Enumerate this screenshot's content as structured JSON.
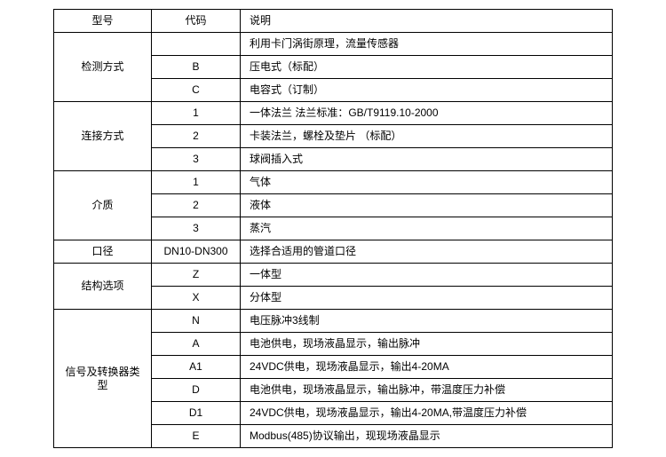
{
  "header": {
    "model": "型号",
    "code": "代码",
    "desc": "说明"
  },
  "principle": "利用卡门涡街原理，流量传感器",
  "detection": {
    "label": "检测方式",
    "rows": [
      {
        "code": "B",
        "desc": "压电式（标配）"
      },
      {
        "code": "C",
        "desc": "电容式（订制）"
      }
    ]
  },
  "connection": {
    "label": "连接方式",
    "rows": [
      {
        "code": "1",
        "desc": "一体法兰  法兰标准：GB/T9119.10-2000"
      },
      {
        "code": "2",
        "desc": "卡装法兰，螺栓及垫片 （标配）"
      },
      {
        "code": "3",
        "desc": "球阀插入式"
      }
    ]
  },
  "medium": {
    "label": "介质",
    "rows": [
      {
        "code": "1",
        "desc": "气体"
      },
      {
        "code": "2",
        "desc": "液体"
      },
      {
        "code": "3",
        "desc": "蒸汽"
      }
    ]
  },
  "caliber": {
    "label": "口径",
    "code": "DN10-DN300",
    "desc": "选择合适用的管道口径"
  },
  "structure": {
    "label": "结构选项",
    "rows": [
      {
        "code": "Z",
        "desc": "一体型"
      },
      {
        "code": "X",
        "desc": "分体型"
      }
    ]
  },
  "signal": {
    "label": "信号及转换器类型",
    "rows": [
      {
        "code": "N",
        "desc": "电压脉冲3线制"
      },
      {
        "code": "A",
        "desc": "电池供电，现场液晶显示，输出脉冲"
      },
      {
        "code": "A1",
        "desc": "24VDC供电，现场液晶显示，输出4-20MA"
      },
      {
        "code": "D",
        "desc": "电池供电，现场液晶显示，输出脉冲，带温度压力补偿"
      },
      {
        "code": "D1",
        "desc": "24VDC供电，现场液晶显示，输出4-20MA,带温度压力补偿"
      },
      {
        "code": "E",
        "desc": "Modbus(485)协议输出，现现场液晶显示"
      }
    ]
  }
}
